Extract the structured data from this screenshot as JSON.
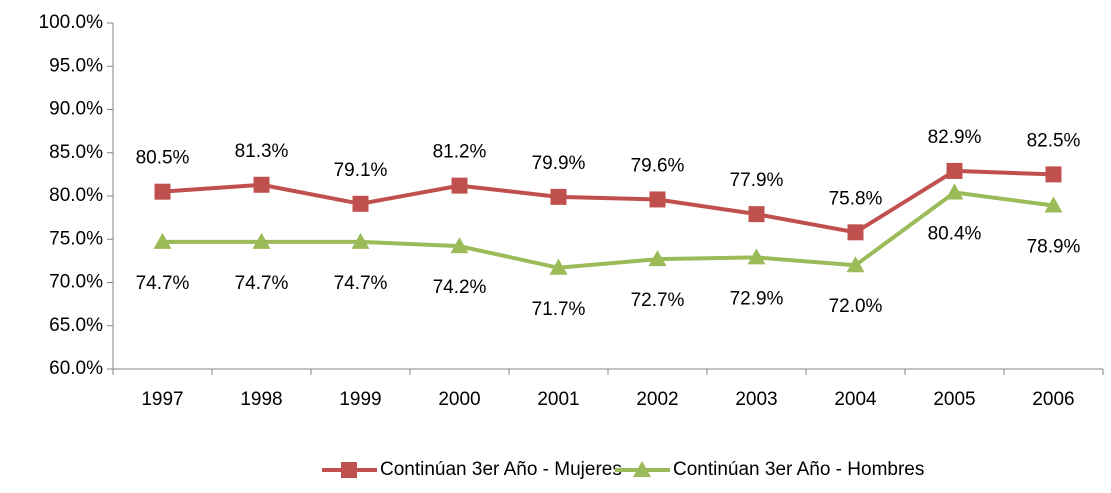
{
  "chart_data": {
    "type": "line",
    "categories": [
      "1997",
      "1998",
      "1999",
      "2000",
      "2001",
      "2002",
      "2003",
      "2004",
      "2005",
      "2006"
    ],
    "series": [
      {
        "name": "Continúan 3er Año - Mujeres",
        "color": "#c0504d",
        "marker": "square",
        "values": [
          80.5,
          81.3,
          79.1,
          81.2,
          79.9,
          79.6,
          77.9,
          75.8,
          82.9,
          82.5
        ],
        "value_labels": [
          "80.5%",
          "81.3%",
          "79.1%",
          "81.2%",
          "79.9%",
          "79.6%",
          "77.9%",
          "75.8%",
          "82.9%",
          "82.5%"
        ]
      },
      {
        "name": "Continúan 3er Año - Hombres",
        "color": "#9bbb59",
        "marker": "triangle",
        "values": [
          74.7,
          74.7,
          74.7,
          74.2,
          71.7,
          72.7,
          72.9,
          72.0,
          80.4,
          78.9
        ],
        "value_labels": [
          "74.7%",
          "74.7%",
          "74.7%",
          "74.2%",
          "71.7%",
          "72.7%",
          "72.9%",
          "72.0%",
          "80.4%",
          "78.9%"
        ]
      }
    ],
    "ylim": [
      60,
      100
    ],
    "yticks": [
      {
        "value": 60,
        "label": "60.0%"
      },
      {
        "value": 65,
        "label": "65.0%"
      },
      {
        "value": 70,
        "label": "70.0%"
      },
      {
        "value": 75,
        "label": "75.0%"
      },
      {
        "value": 80,
        "label": "80.0%"
      },
      {
        "value": 85,
        "label": "85.0%"
      },
      {
        "value": 90,
        "label": "90.0%"
      },
      {
        "value": 95,
        "label": "95.0%"
      },
      {
        "value": 100,
        "label": "100.0%"
      }
    ],
    "grid": false,
    "legend": "bottom"
  }
}
